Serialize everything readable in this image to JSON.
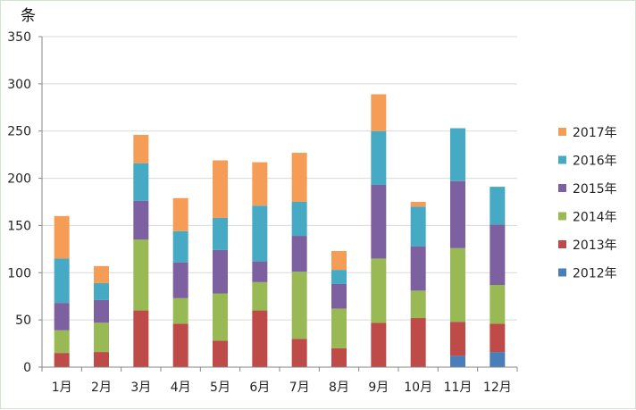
{
  "chart_data": {
    "type": "bar",
    "stacked": true,
    "title": "",
    "xlabel": "",
    "ylabel": "条",
    "ylim": [
      0,
      350
    ],
    "yticks": [
      0,
      50,
      100,
      150,
      200,
      250,
      300,
      350
    ],
    "grid": true,
    "legend_position": "right",
    "categories": [
      "1月",
      "2月",
      "3月",
      "4月",
      "5月",
      "6月",
      "7月",
      "8月",
      "9月",
      "10月",
      "11月",
      "12月"
    ],
    "series": [
      {
        "name": "2012年",
        "color": "#4a7ebb",
        "values": [
          0,
          0,
          0,
          0,
          0,
          0,
          0,
          0,
          0,
          0,
          12,
          16
        ]
      },
      {
        "name": "2013年",
        "color": "#be4b48",
        "values": [
          15,
          16,
          60,
          46,
          28,
          60,
          30,
          20,
          47,
          52,
          36,
          30
        ]
      },
      {
        "name": "2014年",
        "color": "#98b954",
        "values": [
          24,
          31,
          75,
          27,
          50,
          30,
          71,
          42,
          68,
          29,
          78,
          41
        ]
      },
      {
        "name": "2015年",
        "color": "#7d60a0",
        "values": [
          29,
          24,
          41,
          38,
          46,
          22,
          38,
          26,
          78,
          47,
          71,
          64
        ]
      },
      {
        "name": "2016年",
        "color": "#46aac5",
        "values": [
          47,
          18,
          40,
          33,
          34,
          59,
          36,
          15,
          57,
          42,
          56,
          40
        ]
      },
      {
        "name": "2017年",
        "color": "#f59d56",
        "values": [
          45,
          18,
          30,
          35,
          61,
          46,
          52,
          20,
          39,
          5,
          0,
          0
        ]
      }
    ]
  }
}
